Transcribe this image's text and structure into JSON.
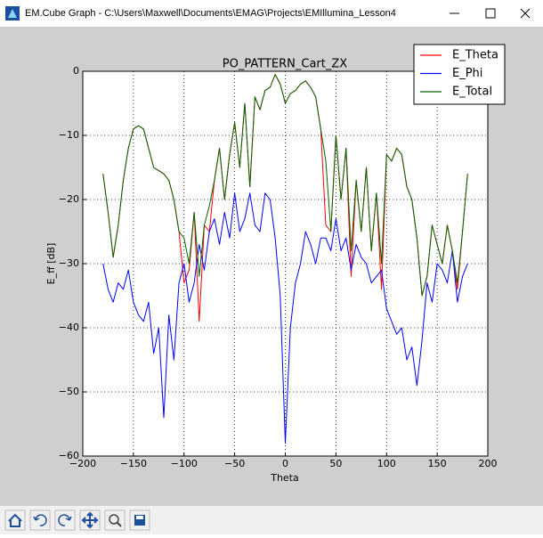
{
  "window": {
    "title": "EM.Cube Graph - C:\\Users\\Maxwell\\Documents\\EMAG\\Projects\\EMIllumina_Lesson4"
  },
  "chart_data": {
    "type": "line",
    "title": "PO_PATTERN_Cart_ZX",
    "x_label": "Theta",
    "y_label": "E_ff [dB]",
    "x": [
      -180,
      -175,
      -170,
      -165,
      -160,
      -155,
      -150,
      -145,
      -140,
      -135,
      -130,
      -125,
      -120,
      -115,
      -110,
      -105,
      -100,
      -95,
      -90,
      -85,
      -80,
      -75,
      -70,
      -65,
      -60,
      -55,
      -50,
      -45,
      -40,
      -35,
      -30,
      -25,
      -20,
      -15,
      -10,
      -5,
      0,
      5,
      10,
      15,
      20,
      25,
      30,
      35,
      40,
      45,
      50,
      55,
      60,
      65,
      70,
      75,
      80,
      85,
      90,
      95,
      100,
      105,
      110,
      115,
      120,
      125,
      130,
      135,
      140,
      145,
      150,
      155,
      160,
      165,
      170,
      175,
      180
    ],
    "series": [
      {
        "name": "E_Theta",
        "color": "#ff0000",
        "values": [
          -16,
          -22,
          -29,
          -24,
          -17,
          -12,
          -9,
          -8.5,
          -9,
          -12,
          -15,
          -15.5,
          -16,
          -17,
          -20,
          -25,
          -33,
          -31,
          -22,
          -39,
          -24,
          -25,
          -17,
          -12,
          -20,
          -13,
          -8,
          -15,
          -5,
          -18,
          -4,
          -6,
          -3,
          -2.5,
          -0.5,
          -2,
          -5,
          -3.5,
          -3,
          -2,
          -1.5,
          -2.5,
          -4,
          -9,
          -24,
          -25,
          -10,
          -20,
          -12,
          -32,
          -17,
          -25,
          -15,
          -28,
          -19,
          -34,
          -13,
          -14,
          -12,
          -13,
          -18,
          -20,
          -26,
          -35,
          -32,
          -24,
          -27,
          -30,
          -24,
          -28,
          -34,
          -25,
          -16
        ]
      },
      {
        "name": "E_Phi",
        "color": "#0000ff",
        "values": [
          -30,
          -34,
          -36,
          -33,
          -34,
          -31,
          -36,
          -38,
          -39,
          -36,
          -44,
          -40,
          -54,
          -38,
          -45,
          -33,
          -30,
          -36,
          -33,
          -27,
          -31,
          -25,
          -23,
          -27,
          -22,
          -26,
          -19,
          -25,
          -23,
          -19,
          -24,
          -25,
          -19,
          -20,
          -26,
          -35,
          -58,
          -40,
          -33,
          -30,
          -25,
          -27,
          -30,
          -26,
          -26,
          -28,
          -23,
          -28,
          -26,
          -31,
          -27,
          -29,
          -30,
          -33,
          -32,
          -31,
          -37,
          -39,
          -41,
          -40,
          -45,
          -43,
          -49,
          -42,
          -33,
          -36,
          -30,
          -31,
          -33,
          -28,
          -36,
          -32,
          -30
        ]
      },
      {
        "name": "E_Total",
        "color": "#006400",
        "values": [
          -16,
          -22,
          -29,
          -24,
          -17,
          -12,
          -9,
          -8.5,
          -9,
          -12,
          -15,
          -15.5,
          -16,
          -17,
          -20,
          -25,
          -26,
          -30,
          -22,
          -32,
          -24,
          -21,
          -17,
          -12,
          -20,
          -13,
          -8,
          -15,
          -5,
          -18,
          -4,
          -6,
          -3,
          -2.5,
          -0.5,
          -2,
          -5,
          -3.5,
          -3,
          -2,
          -1.5,
          -2.5,
          -4,
          -9,
          -14,
          -25,
          -10,
          -20,
          -12,
          -28,
          -17,
          -25,
          -15,
          -28,
          -19,
          -30,
          -13,
          -14,
          -12,
          -13,
          -18,
          -20,
          -26,
          -35,
          -32,
          -24,
          -27,
          -30,
          -24,
          -28,
          -33,
          -25,
          -16
        ]
      }
    ],
    "xlim": [
      -200,
      200
    ],
    "xticks": [
      {
        "value": -200,
        "label": "−200"
      },
      {
        "value": -150,
        "label": "−150"
      },
      {
        "value": -100,
        "label": "−100"
      },
      {
        "value": -50,
        "label": "−50"
      },
      0,
      50,
      100,
      150,
      200
    ],
    "ylim": [
      -60,
      0
    ],
    "yticks": [
      {
        "value": -60,
        "label": "−60"
      },
      {
        "value": -50,
        "label": "−50"
      },
      {
        "value": -40,
        "label": "−40"
      },
      {
        "value": -30,
        "label": "−30"
      },
      {
        "value": -20,
        "label": "−20"
      },
      {
        "value": -10,
        "label": "−10"
      },
      0
    ],
    "grid": true,
    "legend": "upper-right"
  }
}
